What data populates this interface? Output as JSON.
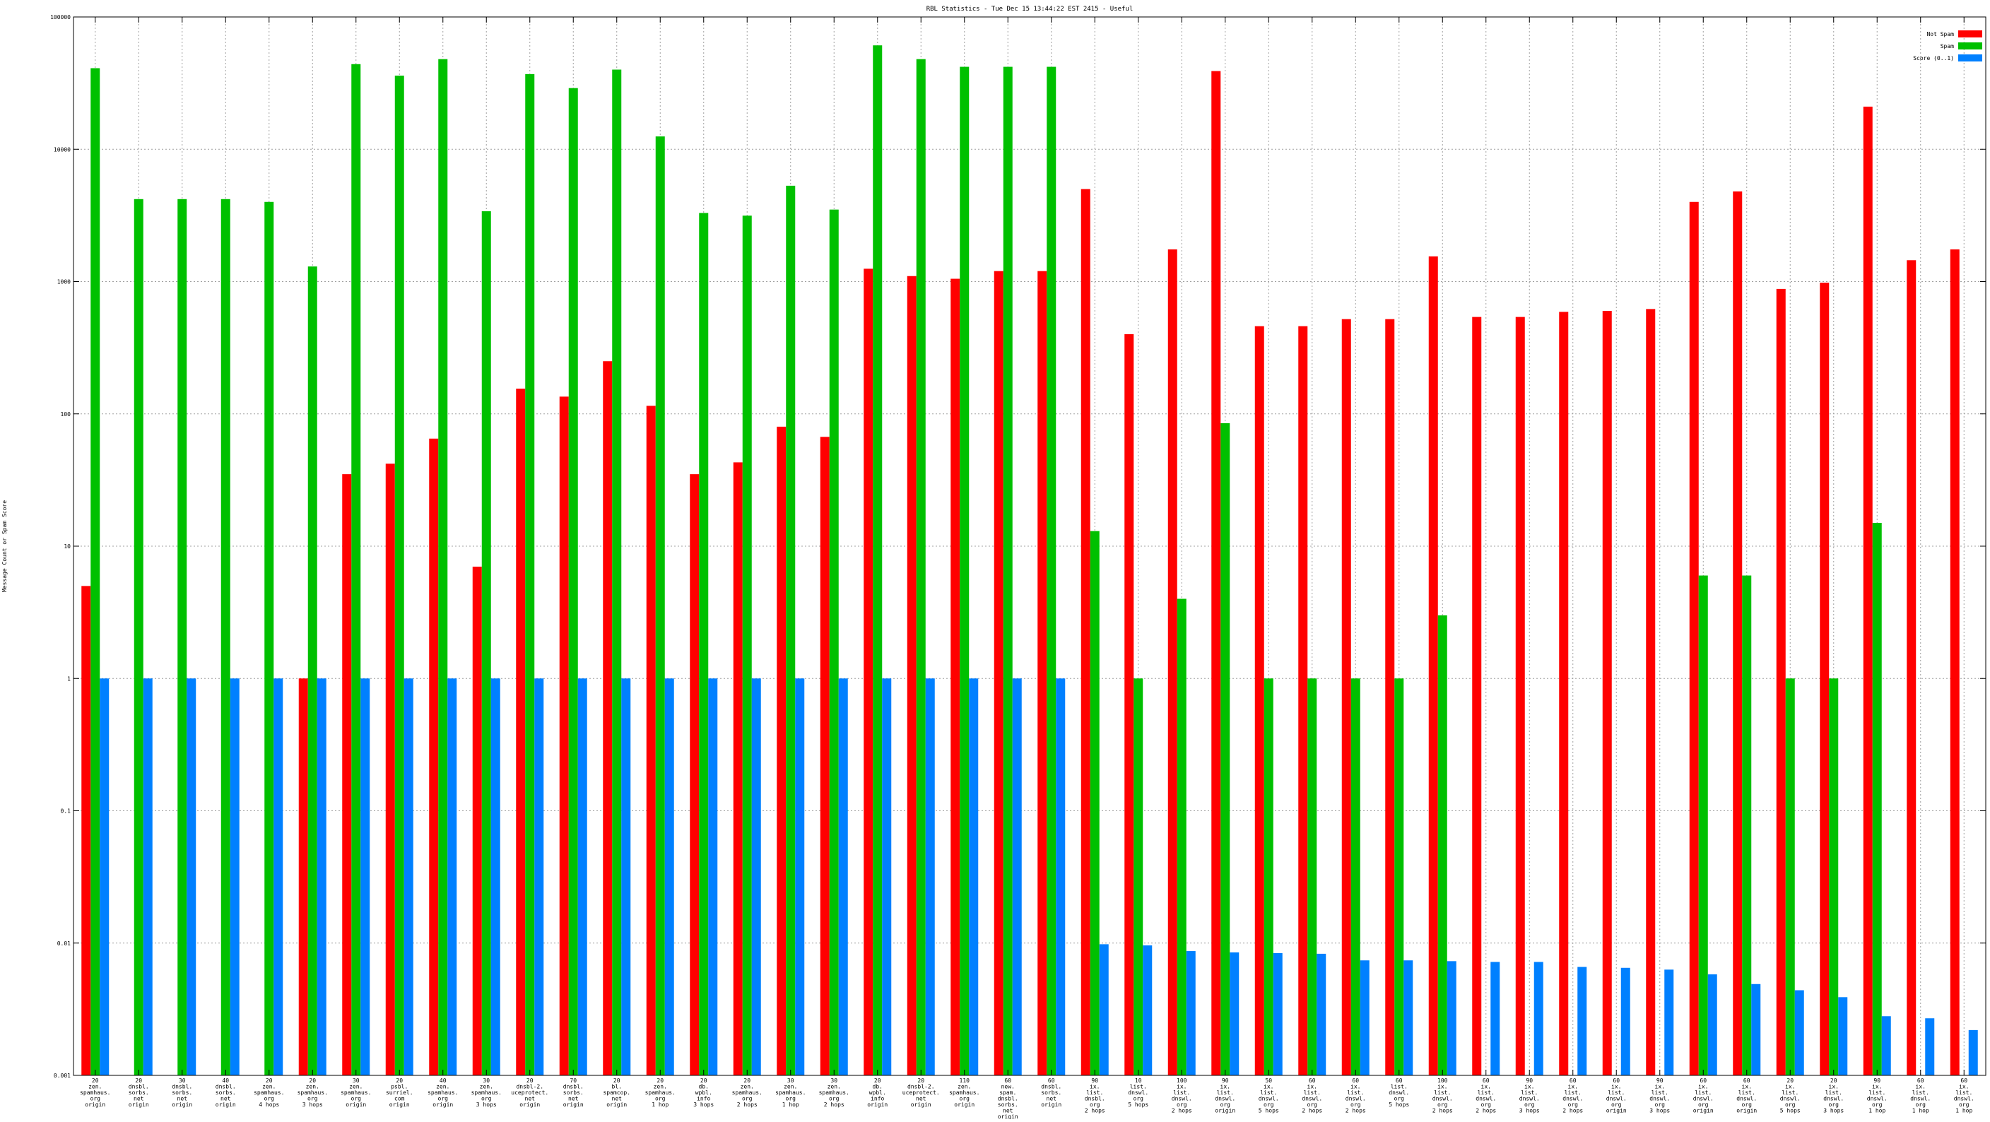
{
  "chart_data": {
    "type": "bar",
    "title": "RBL Statistics - Tue Dec 15 13:44:22 EST 2415 - Useful",
    "ylabel": "Message Count or Spam Score",
    "xlabel": "",
    "yscale": "log",
    "ylim": [
      0.001,
      100000
    ],
    "yticks": [
      0.001,
      0.01,
      0.1,
      1,
      10,
      100,
      1000,
      10000,
      100000
    ],
    "ytick_labels": [
      "0.001",
      "0.01",
      "0.1",
      "1",
      "10",
      "100",
      "1000",
      "10000",
      "100000"
    ],
    "grid": true,
    "legend_position": "top-right",
    "categories": [
      [
        "20",
        "zen.",
        "spamhaus.",
        "org",
        "origin"
      ],
      [
        "20",
        "dnsbl.",
        "sorbs.",
        "net",
        "origin"
      ],
      [
        "30",
        "dnsbl.",
        "sorbs.",
        "net",
        "origin"
      ],
      [
        "40",
        "dnsbl.",
        "sorbs.",
        "net",
        "origin"
      ],
      [
        "20",
        "zen.",
        "spamhaus.",
        "org",
        "4 hops"
      ],
      [
        "20",
        "zen.",
        "spamhaus.",
        "org",
        "3 hops"
      ],
      [
        "30",
        "zen.",
        "spamhaus.",
        "org",
        "origin"
      ],
      [
        "20",
        "psbl.",
        "surriel.",
        "com",
        "origin"
      ],
      [
        "40",
        "zen.",
        "spamhaus.",
        "org",
        "origin"
      ],
      [
        "30",
        "zen.",
        "spamhaus.",
        "org",
        "3 hops"
      ],
      [
        "20",
        "dnsbl-2.",
        "uceprotect.",
        "net",
        "origin"
      ],
      [
        "70",
        "dnsbl.",
        "sorbs.",
        "net",
        "origin"
      ],
      [
        "20",
        "bl.",
        "spamcop.",
        "net",
        "origin"
      ],
      [
        "20",
        "zen.",
        "spamhaus.",
        "org",
        "1 hop"
      ],
      [
        "20",
        "db.",
        "wpbl.",
        "info",
        "3 hops"
      ],
      [
        "20",
        "zen.",
        "spamhaus.",
        "org",
        "2 hops"
      ],
      [
        "30",
        "zen.",
        "spamhaus.",
        "org",
        "1 hop"
      ],
      [
        "30",
        "zen.",
        "spamhaus.",
        "org",
        "2 hops"
      ],
      [
        "20",
        "db.",
        "wpbl.",
        "info",
        "origin"
      ],
      [
        "20",
        "dnsbl-2.",
        "uceprotect.",
        "net",
        "origin"
      ],
      [
        "110",
        "zen.",
        "spamhaus.",
        "org",
        "origin"
      ],
      [
        "60",
        "new.",
        "spam.",
        "dnsbl.",
        "sorbs.",
        "net",
        "origin"
      ],
      [
        "60",
        "dnsbl.",
        "sorbs.",
        "net",
        "origin"
      ],
      [
        "90",
        "ix.",
        "list.",
        "dnsbl.",
        "org",
        "2 hops"
      ],
      [
        "10",
        "list.",
        "dnswl.",
        "org",
        "5 hops"
      ],
      [
        "100",
        "ix.",
        "list.",
        "dnswl.",
        "org",
        "2 hops"
      ],
      [
        "90",
        "ix.",
        "list.",
        "dnswl.",
        "org",
        "origin"
      ],
      [
        "50",
        "ix.",
        "list.",
        "dnswl.",
        "org",
        "5 hops"
      ],
      [
        "60",
        "ix.",
        "list.",
        "dnswl.",
        "org",
        "2 hops"
      ],
      [
        "60",
        "ix.",
        "list.",
        "dnswl.",
        "org",
        "2 hops"
      ],
      [
        "60",
        "list.",
        "dnswl.",
        "org",
        "5 hops"
      ],
      [
        "100",
        "ix.",
        "list.",
        "dnswl.",
        "org",
        "2 hops"
      ],
      [
        "60",
        "ix.",
        "list.",
        "dnswl.",
        "org",
        "2 hops"
      ],
      [
        "90",
        "ix.",
        "list.",
        "dnswl.",
        "org",
        "3 hops"
      ],
      [
        "60",
        "ix.",
        "list.",
        "dnswl.",
        "org",
        "2 hops"
      ],
      [
        "60",
        "ix.",
        "list.",
        "dnswl.",
        "org",
        "origin"
      ],
      [
        "90",
        "ix.",
        "list.",
        "dnswl.",
        "org",
        "3 hops"
      ],
      [
        "60",
        "ix.",
        "list.",
        "dnswl.",
        "org",
        "origin"
      ],
      [
        "60",
        "ix.",
        "list.",
        "dnswl.",
        "org",
        "origin"
      ],
      [
        "20",
        "ix.",
        "list.",
        "dnswl.",
        "org",
        "5 hops"
      ],
      [
        "20",
        "ix.",
        "list.",
        "dnswl.",
        "org",
        "3 hops"
      ],
      [
        "90",
        "ix.",
        "list.",
        "dnswl.",
        "org",
        "1 hop"
      ],
      [
        "60",
        "ix.",
        "list.",
        "dnswl.",
        "org",
        "1 hop"
      ],
      [
        "60",
        "ix.",
        "list.",
        "dnswl.",
        "org",
        "1 hop"
      ]
    ],
    "series": [
      {
        "name": "Not Spam",
        "color": "#ff0000",
        "values": [
          5,
          null,
          null,
          null,
          null,
          1,
          35,
          42,
          65,
          7,
          155,
          135,
          250,
          115,
          35,
          43,
          80,
          67,
          1250,
          1100,
          1050,
          1200,
          1200,
          5000,
          400,
          1750,
          39000,
          460,
          460,
          520,
          520,
          1550,
          540,
          540,
          590,
          600,
          620,
          4000,
          4800,
          880,
          980,
          21000,
          1450,
          1750
        ]
      },
      {
        "name": "Spam",
        "color": "#00c000",
        "values": [
          41000,
          4200,
          4200,
          4200,
          4000,
          1300,
          44000,
          36000,
          48000,
          3400,
          37000,
          29000,
          40000,
          12500,
          3300,
          3150,
          5300,
          3500,
          61000,
          48000,
          42000,
          42000,
          42000,
          13,
          1,
          4,
          85,
          1,
          1,
          1,
          1,
          3,
          null,
          null,
          null,
          null,
          null,
          6,
          6,
          1,
          1,
          15,
          null,
          null
        ]
      },
      {
        "name": "Score (0..1)",
        "color": "#0080ff",
        "values": [
          1,
          1,
          1,
          1,
          1,
          1,
          1,
          1,
          1,
          1,
          1,
          1,
          1,
          1,
          1,
          1,
          1,
          1,
          1,
          1,
          1,
          1,
          1,
          0.0098,
          0.0096,
          0.0087,
          0.0085,
          0.0084,
          0.0083,
          0.0074,
          0.0074,
          0.0073,
          0.0072,
          0.0072,
          0.0066,
          0.0065,
          0.0063,
          0.0058,
          0.0049,
          0.0044,
          0.0039,
          0.0028,
          0.0027,
          0.0022
        ]
      }
    ]
  }
}
